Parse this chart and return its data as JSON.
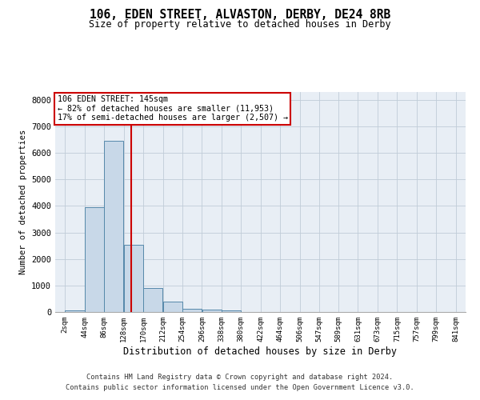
{
  "title": "106, EDEN STREET, ALVASTON, DERBY, DE24 8RB",
  "subtitle": "Size of property relative to detached houses in Derby",
  "xlabel": "Distribution of detached houses by size in Derby",
  "ylabel": "Number of detached properties",
  "bar_color": "#c8d8e8",
  "bar_edge_color": "#5588aa",
  "grid_color": "#c0ccd8",
  "background_color": "#e8eef5",
  "vline_x": 145,
  "vline_color": "#cc0000",
  "annotation_box_color": "#cc0000",
  "annotation_lines": [
    "106 EDEN STREET: 145sqm",
    "← 82% of detached houses are smaller (11,953)",
    "17% of semi-detached houses are larger (2,507) →"
  ],
  "footnote_line1": "Contains HM Land Registry data © Crown copyright and database right 2024.",
  "footnote_line2": "Contains public sector information licensed under the Open Government Licence v3.0.",
  "bin_edges": [
    2,
    44,
    86,
    128,
    170,
    212,
    254,
    296,
    338,
    380,
    422,
    464,
    506,
    547,
    589,
    631,
    673,
    715,
    757,
    799,
    841
  ],
  "bin_labels": [
    "2sqm",
    "44sqm",
    "86sqm",
    "128sqm",
    "170sqm",
    "212sqm",
    "254sqm",
    "296sqm",
    "338sqm",
    "380sqm",
    "422sqm",
    "464sqm",
    "506sqm",
    "547sqm",
    "589sqm",
    "631sqm",
    "673sqm",
    "715sqm",
    "757sqm",
    "799sqm",
    "841sqm"
  ],
  "bar_heights": [
    50,
    3950,
    6450,
    2550,
    900,
    400,
    130,
    90,
    55,
    10,
    5,
    3,
    2,
    1,
    0,
    0,
    0,
    0,
    0,
    0
  ],
  "ylim": [
    0,
    8300
  ],
  "yticks": [
    0,
    1000,
    2000,
    3000,
    4000,
    5000,
    6000,
    7000,
    8000
  ]
}
